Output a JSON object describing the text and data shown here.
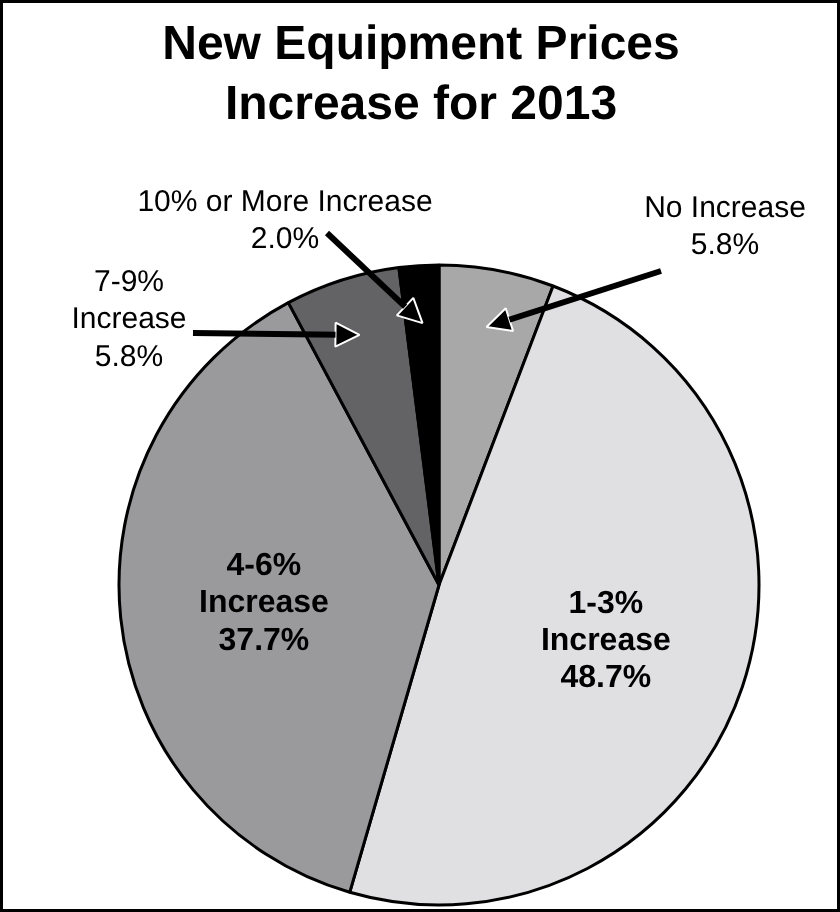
{
  "chart_data": {
    "type": "pie",
    "title": "New Equipment Prices Increase for 2013",
    "categories": [
      "No Increase",
      "1-3% Increase",
      "4-6% Increase",
      "7-9% Increase",
      "10% or More Increase"
    ],
    "values": [
      5.8,
      48.7,
      37.7,
      5.8,
      2.0
    ],
    "value_labels": [
      "5.8%",
      "48.7%",
      "37.7%",
      "5.8%",
      "2.0%"
    ],
    "colors": [
      "#a8a8a8",
      "#e0e0e2",
      "#9a9a9c",
      "#636365",
      "#000000"
    ]
  }
}
